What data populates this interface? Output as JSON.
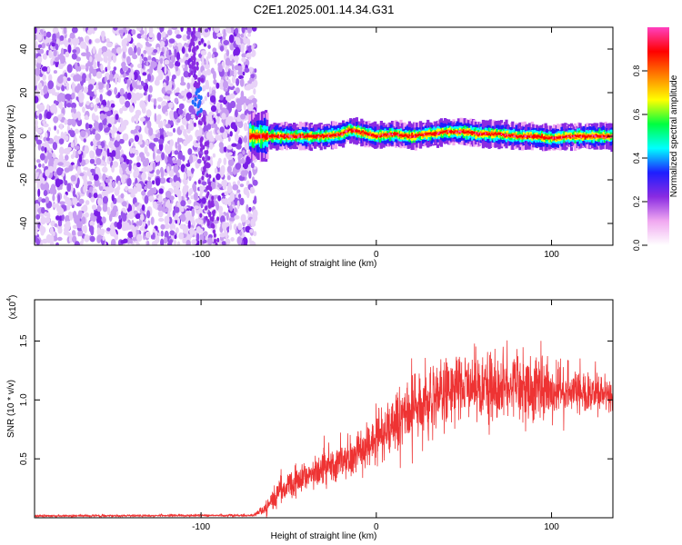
{
  "figure": {
    "title": "C2E1.2025.001.14.34.G31"
  },
  "chart_data": [
    {
      "type": "heatmap",
      "title": "C2E1.2025.001.14.34.G31",
      "xlabel": "Height of straight line (km)",
      "ylabel": "Frequency (Hz)",
      "xlim": [
        -195,
        135
      ],
      "ylim": [
        -50,
        50
      ],
      "x_ticks": [
        -100,
        0,
        100
      ],
      "y_ticks": [
        -40,
        -20,
        0,
        20,
        40
      ],
      "colorbar": {
        "label": "Normalized spectral amplitude",
        "range": [
          0,
          1
        ],
        "ticks": [
          "0.0",
          "0.2",
          "0.4",
          "0.6",
          "0.8"
        ],
        "colors": [
          "#ffffff",
          "#f0a8f0",
          "#8a2be2",
          "#1e1eff",
          "#00ffff",
          "#00ff40",
          "#ffff00",
          "#ff8000",
          "#ff0000",
          "#ff40c0"
        ]
      },
      "noise_region_x": [
        -195,
        -72
      ],
      "signal_track": {
        "x": [
          -72,
          -60,
          -50,
          -40,
          -30,
          -20,
          -15,
          -10,
          0,
          10,
          20,
          30,
          40,
          50,
          60,
          70,
          80,
          90,
          100,
          110,
          120,
          135
        ],
        "frequency": [
          0,
          0,
          0,
          0,
          0,
          1,
          3,
          2,
          0,
          1,
          0,
          1,
          2,
          2,
          1,
          1,
          0,
          0,
          -1,
          0,
          0,
          0
        ]
      },
      "grid": false
    },
    {
      "type": "line",
      "xlabel": "Height of straight line (km)",
      "ylabel": "SNR (10 * v/v)",
      "y_multiplier": "(x10",
      "y_multiplier_exp": "4",
      "y_multiplier_close": ")",
      "xlim": [
        -195,
        135
      ],
      "ylim": [
        0,
        1.85
      ],
      "x_ticks": [
        -100,
        0,
        100
      ],
      "y_ticks": [
        0.5,
        1.0,
        1.5
      ],
      "y_tick_labels": [
        "0.5",
        "1.0",
        "1.5"
      ],
      "series": [
        {
          "color": "#ee3333",
          "envelope_x": [
            -195,
            -70,
            -62,
            -55,
            -45,
            -35,
            -25,
            -15,
            -5,
            5,
            15,
            25,
            35,
            45,
            55,
            65,
            75,
            85,
            95,
            105,
            115,
            125,
            135
          ],
          "envelope_mean": [
            0.015,
            0.02,
            0.1,
            0.22,
            0.3,
            0.38,
            0.45,
            0.52,
            0.6,
            0.72,
            0.85,
            0.95,
            1.05,
            1.08,
            1.12,
            1.1,
            1.12,
            1.08,
            1.08,
            1.06,
            1.05,
            1.06,
            1.05
          ],
          "envelope_spread": [
            0.01,
            0.01,
            0.08,
            0.12,
            0.15,
            0.15,
            0.18,
            0.18,
            0.2,
            0.22,
            0.3,
            0.3,
            0.3,
            0.32,
            0.32,
            0.32,
            0.3,
            0.3,
            0.28,
            0.25,
            0.22,
            0.18,
            0.15
          ]
        }
      ],
      "grid": false
    }
  ]
}
